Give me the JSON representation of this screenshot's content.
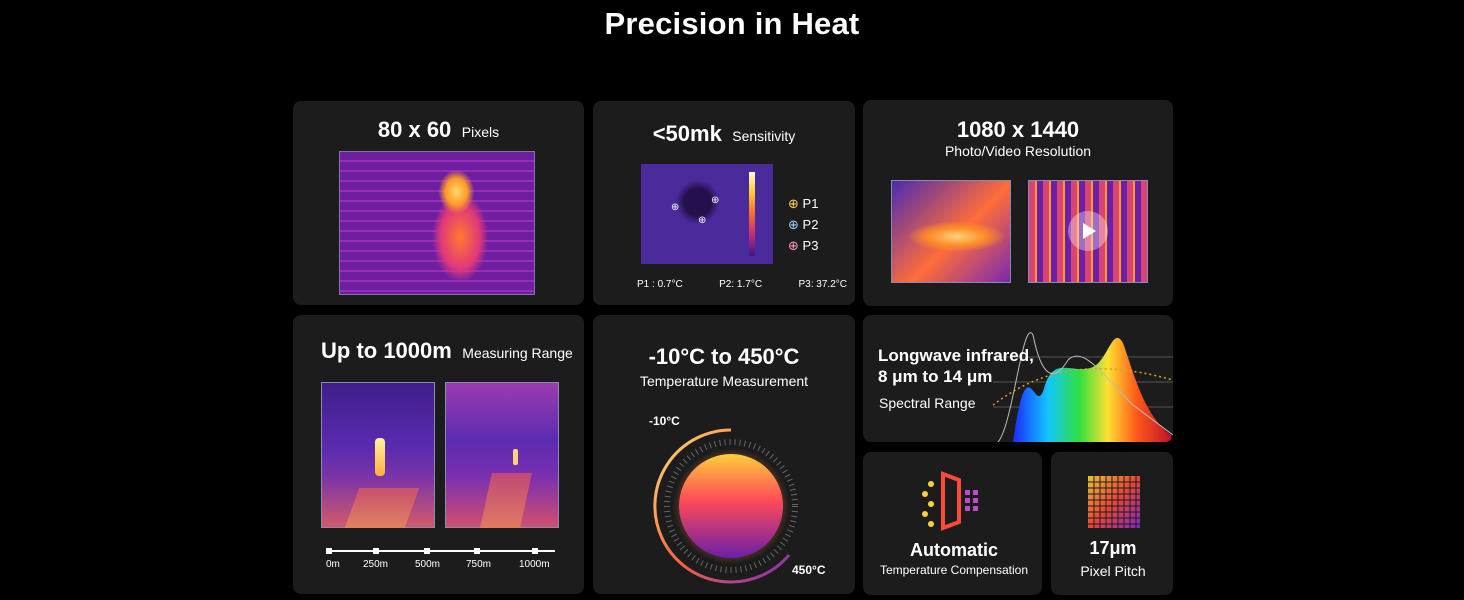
{
  "page": {
    "title": "Precision in Heat"
  },
  "pixels": {
    "value": "80 x 60",
    "label": "Pixels"
  },
  "sensitivity": {
    "value": "<50mk",
    "label": "Sensitivity",
    "legend": [
      "P1",
      "P2",
      "P3"
    ],
    "readings": [
      "P1 : 0.7°C",
      "P2:  1.7°C",
      "P3:  37.2°C"
    ]
  },
  "resolution": {
    "value": "1080 x 1440",
    "label": "Photo/Video Resolution"
  },
  "range": {
    "value": "Up to 1000m",
    "label": "Measuring Range",
    "scale": [
      "0m",
      "250m",
      "500m",
      "750m",
      "1000m"
    ]
  },
  "temperature": {
    "value": "-10°C to 450°C",
    "label": "Temperature Measurement",
    "min": "-10°C",
    "max": "450°C"
  },
  "spectral": {
    "line1": "Longwave infrared,",
    "line2": "8 μm to 14 μm",
    "label": "Spectral Range"
  },
  "compensation": {
    "title": "Automatic",
    "label": "Temperature Compensation"
  },
  "pitch": {
    "value": "17μm",
    "label": "Pixel Pitch"
  },
  "colors": {
    "background": "#000000",
    "card": "#1c1c1c",
    "accent": "#ff9a2a"
  }
}
